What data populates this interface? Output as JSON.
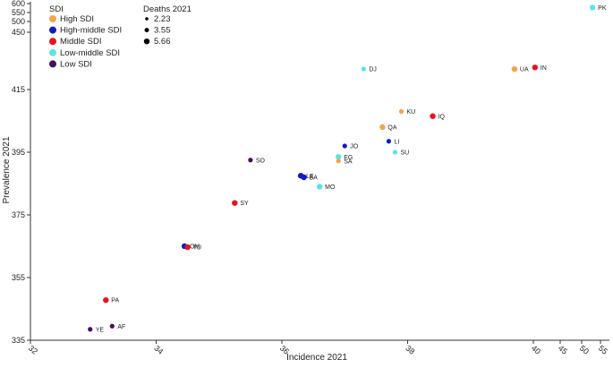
{
  "chart_data": {
    "type": "scatter",
    "xlabel": "Incidence 2021",
    "ylabel": "Prevalence 2021",
    "x_ticks": [
      {
        "label": "32",
        "value": 32
      },
      {
        "label": "34",
        "value": 34
      },
      {
        "label": "36",
        "value": 36
      },
      {
        "label": "38",
        "value": 38
      },
      {
        "label": "40",
        "value": 40
      },
      {
        "label": "45",
        "value": 45
      },
      {
        "label": "50",
        "value": 50
      },
      {
        "label": "55",
        "value": 55
      }
    ],
    "x_segments": [
      {
        "range": [
          32,
          40
        ],
        "scale": "linear"
      },
      {
        "range": [
          40,
          55
        ],
        "scale": "compressed"
      }
    ],
    "y_ticks": [
      {
        "label": "335",
        "value": 335
      },
      {
        "label": "355",
        "value": 355
      },
      {
        "label": "375",
        "value": 375
      },
      {
        "label": "395",
        "value": 395
      },
      {
        "label": "415",
        "value": 415
      },
      {
        "label": "450",
        "value": 450
      },
      {
        "label": "500",
        "value": 500
      },
      {
        "label": "550",
        "value": 550
      },
      {
        "label": "600",
        "value": 600
      }
    ],
    "y_segments": [
      {
        "range": [
          335,
          415
        ],
        "scale": "linear"
      },
      {
        "range": [
          415,
          600
        ],
        "scale": "compressed"
      }
    ],
    "xlim": [
      32,
      55
    ],
    "ylim": [
      335,
      600
    ],
    "legend_sdi": {
      "title": "SDI",
      "items": [
        {
          "label": "High SDI",
          "color": "#F4A34B"
        },
        {
          "label": "High-middle SDI",
          "color": "#1119C9"
        },
        {
          "label": "Middle SDI",
          "color": "#E3151B"
        },
        {
          "label": "Low-middle SDI",
          "color": "#5BE4E8"
        },
        {
          "label": "Low SDI",
          "color": "#4B0C5E"
        }
      ]
    },
    "legend_size": {
      "title": "Deaths 2021",
      "items": [
        {
          "label": "2.23",
          "value": 2.23
        },
        {
          "label": "3.55",
          "value": 3.55
        },
        {
          "label": "5.66",
          "value": 5.66
        }
      ]
    },
    "points": [
      {
        "label": "PK",
        "x": 52.9,
        "y": 578,
        "sdi": "Low-middle SDI",
        "size": 3.2
      },
      {
        "label": "DJ",
        "x": 37.3,
        "y": 427.5,
        "sdi": "Low-middle SDI",
        "size": 2.6
      },
      {
        "label": "UA",
        "x": 39.7,
        "y": 427.5,
        "sdi": "High SDI",
        "size": 3.2
      },
      {
        "label": "IN",
        "x": 40.3,
        "y": 428.5,
        "sdi": "Middle SDI",
        "size": 3.2
      },
      {
        "label": "KU",
        "x": 37.9,
        "y": 408,
        "sdi": "High SDI",
        "size": 2.6
      },
      {
        "label": "IQ",
        "x": 38.4,
        "y": 406.5,
        "sdi": "Middle SDI",
        "size": 3.2
      },
      {
        "label": "QA",
        "x": 37.6,
        "y": 403,
        "sdi": "High SDI",
        "size": 3.2
      },
      {
        "label": "LI",
        "x": 37.7,
        "y": 398.5,
        "sdi": "High-middle SDI",
        "size": 2.6
      },
      {
        "label": "JO",
        "x": 37.0,
        "y": 397,
        "sdi": "High-middle SDI",
        "size": 2.6
      },
      {
        "label": "SU",
        "x": 37.8,
        "y": 395,
        "sdi": "Low-middle SDI",
        "size": 2.6
      },
      {
        "label": "EG",
        "x": 36.9,
        "y": 393.5,
        "sdi": "Low-middle SDI",
        "size": 3.2
      },
      {
        "label": "SA",
        "x": 36.9,
        "y": 392.2,
        "sdi": "High SDI",
        "size": 2.6
      },
      {
        "label": "SO",
        "x": 35.5,
        "y": 392.5,
        "sdi": "Low SDI",
        "size": 2.6
      },
      {
        "label": "LE",
        "x": 36.3,
        "y": 387.5,
        "sdi": "High-middle SDI",
        "size": 3.2
      },
      {
        "label": "BA",
        "x": 36.35,
        "y": 387,
        "sdi": "High-middle SDI",
        "size": 3.2
      },
      {
        "label": "MO",
        "x": 36.6,
        "y": 384,
        "sdi": "Low-middle SDI",
        "size": 3.2
      },
      {
        "label": "SY",
        "x": 35.25,
        "y": 378.8,
        "sdi": "Middle SDI",
        "size": 3.2
      },
      {
        "label": "OM",
        "x": 34.45,
        "y": 365,
        "sdi": "High-middle SDI",
        "size": 3.2
      },
      {
        "label": "TU",
        "x": 34.5,
        "y": 364.7,
        "sdi": "Middle SDI",
        "size": 3.2
      },
      {
        "label": "PA",
        "x": 33.2,
        "y": 347.8,
        "sdi": "Middle SDI",
        "size": 3.2
      },
      {
        "label": "AF",
        "x": 33.3,
        "y": 339.5,
        "sdi": "Low SDI",
        "size": 2.6
      },
      {
        "label": "YE",
        "x": 32.95,
        "y": 338.5,
        "sdi": "Low SDI",
        "size": 2.6
      }
    ]
  }
}
